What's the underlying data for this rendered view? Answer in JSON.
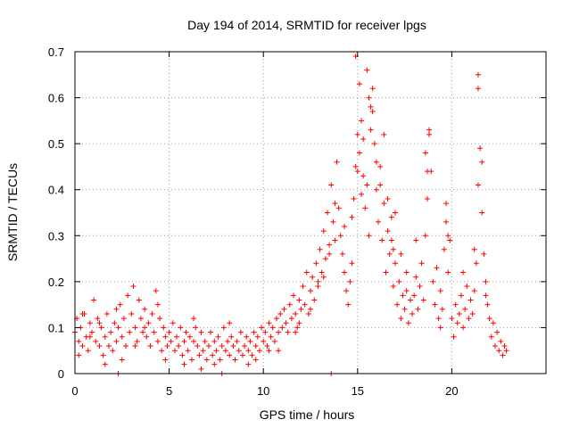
{
  "chart_data": {
    "type": "scatter",
    "title": "Day 194 of 2014, SRMTID for receiver lpgs",
    "xlabel": "GPS time / hours",
    "ylabel": "SRMTID / TECUs",
    "xlim": [
      0,
      25
    ],
    "ylim": [
      0,
      0.7
    ],
    "xticks": [
      0,
      5,
      10,
      15,
      20
    ],
    "xtick_labels": [
      "0",
      "5",
      "10",
      "15",
      "20"
    ],
    "yticks": [
      0,
      0.1,
      0.2,
      0.3,
      0.4,
      0.5,
      0.6,
      0.7
    ],
    "ytick_labels": [
      "0",
      "0.1",
      "0.2",
      "0.3",
      "0.4",
      "0.5",
      "0.6",
      "0.7"
    ],
    "grid": true,
    "marker": "plus",
    "color": "#ff0000",
    "series": [
      {
        "name": "SRMTID",
        "points": [
          [
            0.0,
            0.09
          ],
          [
            0.1,
            0.12
          ],
          [
            0.2,
            0.07
          ],
          [
            0.3,
            0.1
          ],
          [
            0.4,
            0.06
          ],
          [
            0.5,
            0.13
          ],
          [
            0.6,
            0.08
          ],
          [
            0.7,
            0.05
          ],
          [
            0.8,
            0.11
          ],
          [
            0.9,
            0.09
          ],
          [
            1.0,
            0.16
          ],
          [
            1.1,
            0.07
          ],
          [
            1.2,
            0.12
          ],
          [
            1.3,
            0.06
          ],
          [
            1.4,
            0.1
          ],
          [
            1.5,
            0.04
          ],
          [
            1.6,
            0.08
          ],
          [
            1.7,
            0.13
          ],
          [
            1.8,
            0.06
          ],
          [
            1.9,
            0.09
          ],
          [
            2.0,
            0.05
          ],
          [
            2.1,
            0.11
          ],
          [
            2.2,
            0.07
          ],
          [
            2.3,
            0.1
          ],
          [
            2.4,
            0.15
          ],
          [
            2.5,
            0.08
          ],
          [
            2.6,
            0.12
          ],
          [
            2.7,
            0.06
          ],
          [
            2.8,
            0.17
          ],
          [
            2.9,
            0.09
          ],
          [
            3.0,
            0.13
          ],
          [
            3.1,
            0.19
          ],
          [
            3.2,
            0.1
          ],
          [
            3.3,
            0.07
          ],
          [
            3.4,
            0.16
          ],
          [
            3.5,
            0.12
          ],
          [
            3.6,
            0.09
          ],
          [
            3.7,
            0.14
          ],
          [
            3.8,
            0.08
          ],
          [
            3.9,
            0.11
          ],
          [
            4.0,
            0.06
          ],
          [
            4.1,
            0.13
          ],
          [
            4.2,
            0.09
          ],
          [
            4.3,
            0.18
          ],
          [
            4.4,
            0.07
          ],
          [
            4.5,
            0.12
          ],
          [
            4.6,
            0.05
          ],
          [
            4.7,
            0.1
          ],
          [
            4.8,
            0.08
          ],
          [
            4.9,
            0.06
          ],
          [
            5.0,
            0.09
          ],
          [
            5.1,
            0.07
          ],
          [
            5.2,
            0.11
          ],
          [
            5.3,
            0.05
          ],
          [
            5.4,
            0.08
          ],
          [
            5.5,
            0.06
          ],
          [
            5.6,
            0.1
          ],
          [
            5.7,
            0.04
          ],
          [
            5.8,
            0.07
          ],
          [
            5.9,
            0.09
          ],
          [
            6.0,
            0.05
          ],
          [
            6.1,
            0.08
          ],
          [
            6.2,
            0.03
          ],
          [
            6.3,
            0.07
          ],
          [
            6.4,
            0.1
          ],
          [
            6.5,
            0.06
          ],
          [
            6.6,
            0.04
          ],
          [
            6.7,
            0.09
          ],
          [
            6.8,
            0.05
          ],
          [
            6.9,
            0.07
          ],
          [
            7.0,
            0.03
          ],
          [
            7.1,
            0.06
          ],
          [
            7.2,
            0.09
          ],
          [
            7.3,
            0.04
          ],
          [
            7.4,
            0.07
          ],
          [
            7.5,
            0.05
          ],
          [
            7.6,
            0.08
          ],
          [
            7.7,
            0.03
          ],
          [
            7.8,
            0.06
          ],
          [
            7.9,
            0.1
          ],
          [
            8.0,
            0.05
          ],
          [
            8.1,
            0.07
          ],
          [
            8.2,
            0.04
          ],
          [
            8.3,
            0.08
          ],
          [
            8.4,
            0.06
          ],
          [
            8.5,
            0.03
          ],
          [
            8.6,
            0.07
          ],
          [
            8.7,
            0.05
          ],
          [
            8.8,
            0.09
          ],
          [
            8.9,
            0.04
          ],
          [
            9.0,
            0.06
          ],
          [
            9.1,
            0.08
          ],
          [
            9.2,
            0.05
          ],
          [
            9.3,
            0.07
          ],
          [
            9.4,
            0.04
          ],
          [
            9.5,
            0.09
          ],
          [
            9.6,
            0.06
          ],
          [
            9.7,
            0.08
          ],
          [
            9.8,
            0.05
          ],
          [
            9.9,
            0.1
          ],
          [
            10.0,
            0.07
          ],
          [
            10.1,
            0.09
          ],
          [
            10.2,
            0.06
          ],
          [
            10.3,
            0.11
          ],
          [
            10.4,
            0.08
          ],
          [
            10.5,
            0.1
          ],
          [
            10.6,
            0.07
          ],
          [
            10.7,
            0.12
          ],
          [
            10.8,
            0.09
          ],
          [
            10.9,
            0.13
          ],
          [
            11.0,
            0.1
          ],
          [
            11.1,
            0.14
          ],
          [
            11.2,
            0.11
          ],
          [
            11.3,
            0.09
          ],
          [
            11.4,
            0.15
          ],
          [
            11.5,
            0.12
          ],
          [
            11.6,
            0.17
          ],
          [
            11.7,
            0.13
          ],
          [
            11.8,
            0.1
          ],
          [
            11.9,
            0.16
          ],
          [
            12.0,
            0.14
          ],
          [
            12.1,
            0.19
          ],
          [
            12.2,
            0.15
          ],
          [
            12.3,
            0.22
          ],
          [
            12.4,
            0.13
          ],
          [
            12.5,
            0.18
          ],
          [
            12.6,
            0.21
          ],
          [
            12.7,
            0.16
          ],
          [
            12.8,
            0.24
          ],
          [
            12.9,
            0.19
          ],
          [
            13.0,
            0.27
          ],
          [
            13.1,
            0.22
          ],
          [
            13.2,
            0.31
          ],
          [
            13.3,
            0.25
          ],
          [
            13.4,
            0.35
          ],
          [
            13.5,
            0.28
          ],
          [
            13.6,
            0.41
          ],
          [
            13.7,
            0.33
          ],
          [
            13.8,
            0.29
          ],
          [
            13.9,
            0.46
          ],
          [
            14.0,
            0.36
          ],
          [
            14.1,
            0.3
          ],
          [
            14.2,
            0.26
          ],
          [
            14.3,
            0.22
          ],
          [
            14.4,
            0.18
          ],
          [
            14.5,
            0.15
          ],
          [
            14.6,
            0.2
          ],
          [
            14.7,
            0.24
          ],
          [
            14.8,
            0.38
          ],
          [
            14.9,
            0.45
          ],
          [
            15.0,
            0.52
          ],
          [
            15.1,
            0.48
          ],
          [
            15.2,
            0.55
          ],
          [
            15.3,
            0.43
          ],
          [
            15.4,
            0.36
          ],
          [
            15.5,
            0.41
          ],
          [
            15.6,
            0.3
          ],
          [
            15.7,
            0.58
          ],
          [
            15.8,
            0.62
          ],
          [
            15.9,
            0.5
          ],
          [
            16.0,
            0.4
          ],
          [
            16.1,
            0.33
          ],
          [
            16.2,
            0.45
          ],
          [
            16.3,
            0.29
          ],
          [
            16.4,
            0.37
          ],
          [
            16.5,
            0.22
          ],
          [
            16.6,
            0.31
          ],
          [
            16.7,
            0.26
          ],
          [
            16.8,
            0.34
          ],
          [
            16.9,
            0.19
          ],
          [
            17.0,
            0.24
          ],
          [
            17.1,
            0.15
          ],
          [
            17.2,
            0.2
          ],
          [
            17.3,
            0.12
          ],
          [
            17.4,
            0.17
          ],
          [
            17.5,
            0.14
          ],
          [
            17.6,
            0.18
          ],
          [
            17.7,
            0.11
          ],
          [
            17.8,
            0.16
          ],
          [
            17.9,
            0.13
          ],
          [
            18.0,
            0.17
          ],
          [
            18.1,
            0.21
          ],
          [
            18.2,
            0.14
          ],
          [
            18.3,
            0.19
          ],
          [
            18.4,
            0.24
          ],
          [
            18.5,
            0.16
          ],
          [
            18.6,
            0.3
          ],
          [
            18.7,
            0.38
          ],
          [
            18.8,
            0.52
          ],
          [
            18.9,
            0.44
          ],
          [
            19.0,
            0.2
          ],
          [
            19.1,
            0.15
          ],
          [
            19.2,
            0.23
          ],
          [
            19.3,
            0.12
          ],
          [
            19.4,
            0.18
          ],
          [
            19.5,
            0.14
          ],
          [
            19.6,
            0.27
          ],
          [
            19.7,
            0.33
          ],
          [
            19.8,
            0.22
          ],
          [
            19.9,
            0.29
          ],
          [
            20.0,
            0.12
          ],
          [
            20.1,
            0.08
          ],
          [
            20.2,
            0.15
          ],
          [
            20.3,
            0.11
          ],
          [
            20.4,
            0.13
          ],
          [
            20.5,
            0.17
          ],
          [
            20.6,
            0.1
          ],
          [
            20.7,
            0.14
          ],
          [
            20.8,
            0.19
          ],
          [
            20.9,
            0.12
          ],
          [
            21.0,
            0.16
          ],
          [
            21.1,
            0.13
          ],
          [
            21.2,
            0.18
          ],
          [
            21.3,
            0.24
          ],
          [
            21.4,
            0.41
          ],
          [
            21.5,
            0.49
          ],
          [
            21.6,
            0.35
          ],
          [
            21.7,
            0.26
          ],
          [
            21.8,
            0.2
          ],
          [
            21.9,
            0.15
          ],
          [
            22.0,
            0.12
          ],
          [
            22.1,
            0.08
          ],
          [
            22.2,
            0.11
          ],
          [
            22.3,
            0.06
          ],
          [
            22.4,
            0.09
          ],
          [
            22.5,
            0.05
          ],
          [
            22.6,
            0.07
          ],
          [
            22.7,
            0.04
          ],
          [
            22.8,
            0.06
          ],
          [
            22.9,
            0.05
          ],
          [
            14.9,
            0.69
          ],
          [
            15.5,
            0.66
          ],
          [
            21.4,
            0.65
          ],
          [
            21.4,
            0.62
          ],
          [
            15.6,
            0.6
          ],
          [
            15.8,
            0.57
          ],
          [
            15.1,
            0.63
          ],
          [
            16.4,
            0.52
          ],
          [
            18.8,
            0.53
          ],
          [
            18.6,
            0.48
          ],
          [
            15.7,
            0.53
          ],
          [
            15.0,
            0.44
          ],
          [
            16.0,
            0.46
          ],
          [
            14.7,
            0.34
          ],
          [
            16.6,
            0.38
          ],
          [
            13.8,
            0.37
          ],
          [
            21.6,
            0.46
          ],
          [
            15.3,
            0.51
          ],
          [
            16.2,
            0.41
          ],
          [
            17.0,
            0.35
          ],
          [
            19.7,
            0.37
          ],
          [
            19.8,
            0.3
          ],
          [
            18.7,
            0.44
          ],
          [
            13.5,
            0.26
          ],
          [
            13.2,
            0.21
          ],
          [
            14.3,
            0.32
          ],
          [
            15.2,
            0.39
          ],
          [
            16.8,
            0.29
          ],
          [
            17.3,
            0.26
          ],
          [
            18.1,
            0.29
          ],
          [
            12.5,
            0.14
          ],
          [
            12.9,
            0.2
          ],
          [
            11.7,
            0.09
          ],
          [
            11.9,
            0.11
          ],
          [
            20.6,
            0.22
          ],
          [
            21.2,
            0.27
          ],
          [
            21.8,
            0.17
          ],
          [
            19.4,
            0.1
          ],
          [
            17.6,
            0.22
          ],
          [
            16.9,
            0.27
          ],
          [
            0.2,
            0.04
          ],
          [
            0.8,
            0.08
          ],
          [
            1.3,
            0.11
          ],
          [
            2.2,
            0.14
          ],
          [
            3.2,
            0.06
          ],
          [
            3.7,
            0.1
          ],
          [
            4.4,
            0.15
          ],
          [
            6.3,
            0.12
          ],
          [
            7.4,
            0.02
          ],
          [
            8.2,
            0.11
          ],
          [
            9.2,
            0.02
          ],
          [
            9.6,
            0.03
          ],
          [
            10.3,
            0.05
          ],
          [
            10.8,
            0.05
          ],
          [
            5.8,
            0.02
          ],
          [
            6.7,
            0.01
          ],
          [
            2.5,
            0.03
          ],
          [
            1.6,
            0.02
          ],
          [
            0.4,
            0.13
          ],
          [
            4.8,
            0.03
          ],
          [
            2.3,
            0.0
          ],
          [
            7.8,
            0.0
          ],
          [
            13.6,
            0.0
          ]
        ]
      }
    ]
  }
}
